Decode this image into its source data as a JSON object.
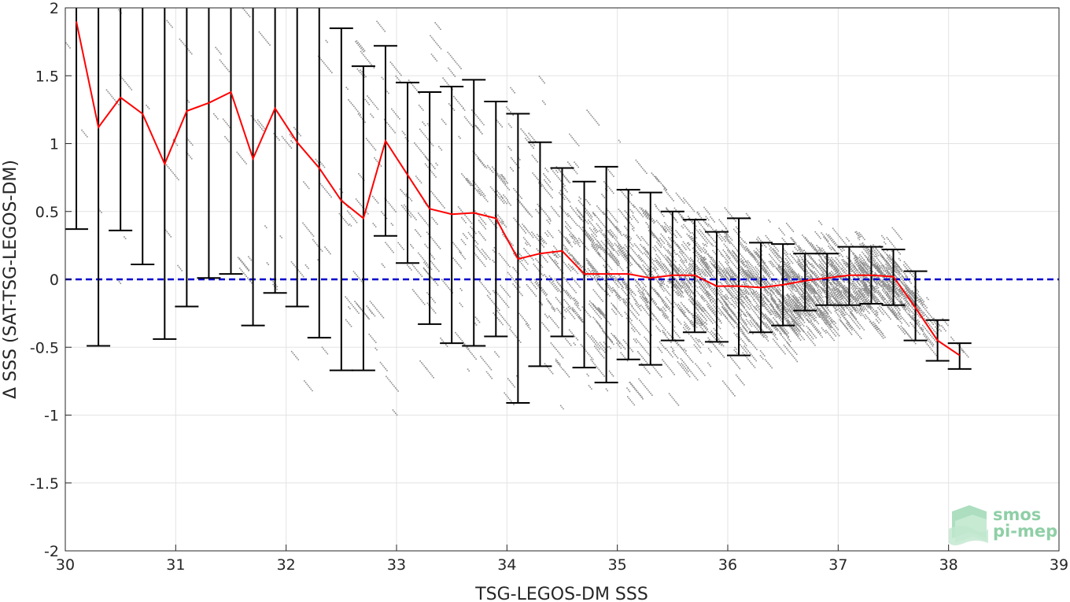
{
  "chart_data": {
    "type": "scatter",
    "xlabel": "TSG-LEGOS-DM SSS",
    "ylabel": "Δ SSS (SAT-TSG-LEGOS-DM)",
    "xlim": [
      30,
      39
    ],
    "ylim": [
      -2,
      2
    ],
    "xticks": [
      "30",
      "31",
      "32",
      "33",
      "34",
      "35",
      "36",
      "37",
      "38",
      "39"
    ],
    "yticks": [
      "-2",
      "-1.5",
      "-1",
      "-0.5",
      "0",
      "0.5",
      "1",
      "1.5",
      "2"
    ],
    "grid": true,
    "colors": {
      "scatter": "#8c8c8c",
      "median_line": "#ff0000",
      "error_bars": "#000000",
      "zero_line": "#0000cc"
    },
    "zero_line": {
      "y": 0,
      "style": "dashed"
    },
    "mean_line": {
      "x": [
        30.1,
        30.3,
        30.5,
        30.7,
        30.9,
        31.1,
        31.3,
        31.5,
        31.7,
        31.9,
        32.1,
        32.3,
        32.5,
        32.7,
        32.9,
        33.1,
        33.3,
        33.5,
        33.7,
        33.9,
        34.1,
        34.3,
        34.5,
        34.7,
        34.9,
        35.1,
        35.3,
        35.5,
        35.7,
        35.9,
        36.1,
        36.3,
        36.5,
        36.7,
        36.9,
        37.1,
        37.3,
        37.5,
        37.7,
        37.9,
        38.1
      ],
      "y": [
        1.9,
        1.12,
        1.34,
        1.22,
        0.85,
        1.24,
        1.3,
        1.38,
        0.89,
        1.26,
        1.01,
        0.82,
        0.58,
        0.45,
        1.02,
        0.77,
        0.52,
        0.48,
        0.49,
        0.45,
        0.15,
        0.19,
        0.21,
        0.04,
        0.04,
        0.04,
        0.01,
        0.03,
        0.03,
        -0.05,
        -0.05,
        -0.06,
        -0.04,
        -0.01,
        0.01,
        0.03,
        0.03,
        0.02,
        -0.21,
        -0.45,
        -0.56
      ]
    },
    "error_bars": {
      "x": [
        30.1,
        30.3,
        30.5,
        30.7,
        30.9,
        31.1,
        31.3,
        31.5,
        31.7,
        31.9,
        32.1,
        32.3,
        32.5,
        32.7,
        32.9,
        33.1,
        33.3,
        33.5,
        33.7,
        33.9,
        34.1,
        34.3,
        34.5,
        34.7,
        34.9,
        35.1,
        35.3,
        35.5,
        35.7,
        35.9,
        36.1,
        36.3,
        36.5,
        36.7,
        36.9,
        37.1,
        37.3,
        37.5,
        37.7,
        37.9,
        38.1
      ],
      "lower": [
        0.37,
        -0.49,
        0.36,
        0.11,
        -0.44,
        -0.2,
        0.01,
        0.04,
        -0.34,
        -0.1,
        -0.2,
        -0.43,
        -0.67,
        -0.67,
        0.32,
        0.12,
        -0.33,
        -0.47,
        -0.49,
        -0.42,
        -0.91,
        -0.64,
        -0.42,
        -0.65,
        -0.76,
        -0.59,
        -0.63,
        -0.45,
        -0.39,
        -0.46,
        -0.56,
        -0.39,
        -0.34,
        -0.23,
        -0.19,
        -0.19,
        -0.18,
        -0.19,
        -0.45,
        -0.6,
        -0.66
      ],
      "upper": [
        2.0,
        2.0,
        2.0,
        2.0,
        2.0,
        2.0,
        2.0,
        2.0,
        2.0,
        2.0,
        2.0,
        2.0,
        1.85,
        1.57,
        1.72,
        1.45,
        1.38,
        1.42,
        1.47,
        1.31,
        1.22,
        1.01,
        0.82,
        0.72,
        0.83,
        0.66,
        0.64,
        0.5,
        0.44,
        0.35,
        0.45,
        0.27,
        0.26,
        0.19,
        0.19,
        0.24,
        0.24,
        0.22,
        0.06,
        -0.3,
        -0.47
      ]
    },
    "scatter_envelope": {
      "x": [
        30.0,
        30.5,
        31.0,
        31.5,
        32.0,
        32.5,
        33.0,
        33.5,
        34.0,
        34.5,
        35.0,
        35.5,
        36.0,
        36.5,
        37.0,
        37.5,
        37.7,
        38.0,
        38.2
      ],
      "center": [
        1.0,
        1.0,
        0.9,
        0.9,
        0.8,
        0.6,
        0.7,
        0.45,
        0.35,
        0.2,
        0.05,
        0.03,
        -0.05,
        -0.05,
        0.0,
        0.02,
        -0.25,
        -0.45,
        -0.55
      ],
      "spread": [
        2.5,
        2.5,
        2.5,
        2.4,
        2.3,
        2.2,
        2.0,
        1.7,
        1.5,
        1.3,
        1.1,
        0.9,
        0.75,
        0.6,
        0.45,
        0.4,
        0.3,
        0.2,
        0.15
      ],
      "density": [
        0.2,
        0.2,
        0.25,
        0.3,
        0.4,
        0.5,
        0.8,
        1.0,
        1.5,
        2.0,
        3.0,
        4.0,
        4.0,
        4.5,
        5.0,
        4.5,
        0.5,
        0.2,
        0.1
      ]
    }
  },
  "logo": {
    "line1": "smos",
    "line2": "pi-mep",
    "color": "#8fcfa6"
  }
}
